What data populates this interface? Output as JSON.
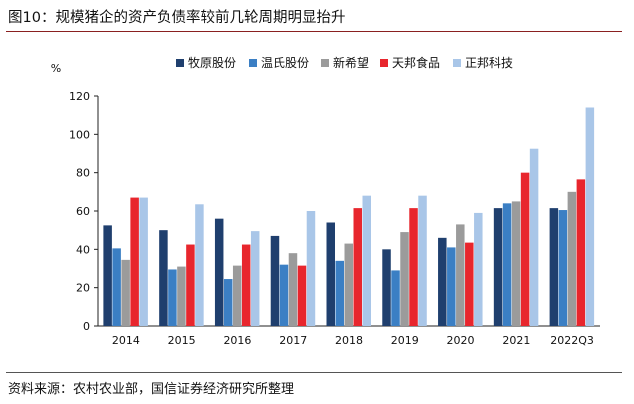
{
  "title": "图10：规模猪企的资产负债率较前几轮周期明显抬升",
  "source": "资料来源：农村农业部，国信证券经济研究所整理",
  "chart_data": {
    "type": "bar",
    "unit_label": "%",
    "categories": [
      "2014",
      "2015",
      "2016",
      "2017",
      "2018",
      "2019",
      "2020",
      "2021",
      "2022Q3"
    ],
    "series": [
      {
        "name": "牧原股份",
        "color": "#1f3f6e",
        "values": [
          52.5,
          50,
          56,
          47,
          54,
          40,
          46,
          61.5,
          61.5
        ]
      },
      {
        "name": "温氏股份",
        "color": "#3b7fc4",
        "values": [
          40.5,
          29.5,
          24.5,
          32,
          34,
          29,
          41,
          64,
          60.5
        ]
      },
      {
        "name": "新希望",
        "color": "#9b9b9b",
        "values": [
          34.5,
          31,
          31.5,
          38,
          43,
          49,
          53,
          65,
          70
        ]
      },
      {
        "name": "天邦食品",
        "color": "#e8262d",
        "values": [
          67,
          42.5,
          42.5,
          31.5,
          61.5,
          61.5,
          43.5,
          80,
          76.5
        ]
      },
      {
        "name": "正邦科技",
        "color": "#a9c6e8",
        "values": [
          67,
          63.5,
          49.5,
          60,
          68,
          68,
          59,
          92.5,
          114
        ]
      }
    ],
    "y_ticks": [
      "0",
      "20",
      "40",
      "60",
      "80",
      "100",
      "120"
    ],
    "ylim": [
      0,
      120
    ],
    "legend_position": "top",
    "grid": false
  }
}
